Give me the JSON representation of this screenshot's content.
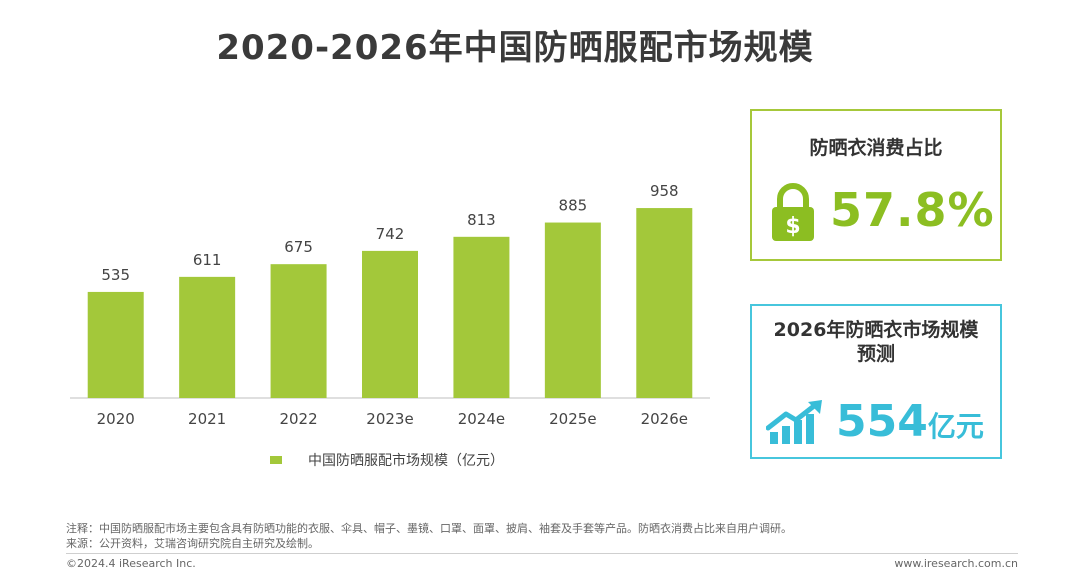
{
  "title": "2020-2026年中国防晒服配市场规模",
  "chart_data": {
    "type": "bar",
    "title": "2020-2026年中国防晒服配市场规模",
    "categories": [
      "2020",
      "2021",
      "2022",
      "2023e",
      "2024e",
      "2025e",
      "2026e"
    ],
    "values": [
      535,
      611,
      675,
      742,
      813,
      885,
      958
    ],
    "series": [
      {
        "name": "中国防晒服配市场规模（亿元）",
        "values": [
          535,
          611,
          675,
          742,
          813,
          885,
          958
        ]
      }
    ],
    "xlabel": "",
    "ylabel": "",
    "ylim": [
      0,
      1150
    ],
    "grid": false,
    "legend_position": "bottom",
    "bar_color": "#a3c83a"
  },
  "legend": {
    "label": "中国防晒服配市场规模（亿元）"
  },
  "card_share": {
    "title": "防晒衣消费占比",
    "value": "57.8%",
    "icon": "lock-dollar-icon",
    "color": "#8cbe22"
  },
  "card_forecast": {
    "title_line1": "2026年防晒衣市场规模",
    "title_line2": "预测",
    "value": "554",
    "unit": "亿元",
    "icon": "growth-chart-icon",
    "color": "#38bdd8"
  },
  "notes": {
    "note": "注释：中国防晒服配市场主要包含具有防晒功能的衣服、伞具、帽子、墨镜、口罩、面罩、披肩、袖套及手套等产品。防晒衣消费占比来自用户调研。",
    "source": "来源：公开资料，艾瑞咨询研究院自主研究及绘制。"
  },
  "footer": {
    "copyright": "©2024.4 iResearch Inc.",
    "site": "www.iresearch.com.cn"
  }
}
